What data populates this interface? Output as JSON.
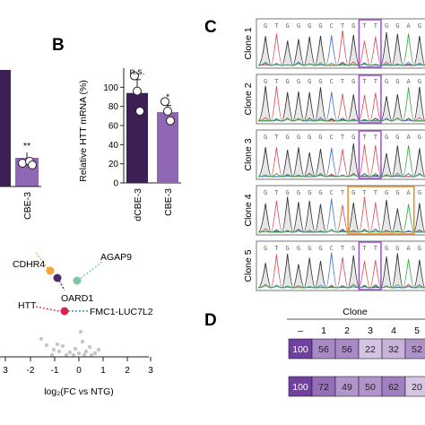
{
  "panel_labels": {
    "b": "B",
    "c": "C",
    "d": "D"
  },
  "panel_a_fragment": {
    "bar_label": "CBE-3",
    "significance": "**",
    "colors": {
      "dark": "#3b1f55",
      "light": "#8f67b5"
    }
  },
  "panel_b": {
    "chart_data": {
      "type": "bar",
      "categories": [
        "dCBE-3",
        "CBE-3"
      ],
      "values": [
        94,
        74
      ],
      "errors": [
        14,
        7
      ],
      "points": [
        [
          112,
          96,
          75
        ],
        [
          85,
          75,
          65
        ]
      ],
      "significance": [
        "n.s.",
        "*"
      ],
      "ylabel": "Relative HTT mRNA (%)",
      "yticks": [
        "0",
        "20",
        "40",
        "60",
        "80",
        "100"
      ],
      "ylim": [
        0,
        120
      ],
      "colors": [
        "#3b1f55",
        "#8f67b5"
      ]
    }
  },
  "panel_volcano": {
    "chart_data": {
      "type": "scatter",
      "xlabel": "log₂(FC vs NTG)",
      "xticks": [
        "3",
        "-2",
        "-1",
        "0",
        "1",
        "2",
        "3"
      ],
      "labeled_genes": [
        {
          "name": "CDHR4",
          "color": "#f4a340"
        },
        {
          "name": "AGAP9",
          "color": "#7ec8a4"
        },
        {
          "name": "OARD1",
          "color": "#4a2c63"
        },
        {
          "name": "HTT",
          "color": "#d7264a"
        },
        {
          "name": "FMC1-LUC7L2",
          "color": "#3a8ec0"
        }
      ]
    }
  },
  "panel_c": {
    "sequence": [
      "G",
      "T",
      "G",
      "G",
      "G",
      "G",
      "C",
      "T",
      "G",
      "T",
      "T",
      "G",
      "G",
      "A",
      "G"
    ],
    "clones": [
      {
        "label": "Clone 1",
        "box_color": "#9b4fd0"
      },
      {
        "label": "Clone 2",
        "box_color": "#9b4fd0"
      },
      {
        "label": "Clone 3",
        "box_color": "#9b4fd0"
      },
      {
        "label": "Clone 4",
        "box_color": "#f0891e"
      },
      {
        "label": "Clone 5",
        "box_color": "#9b4fd0"
      }
    ],
    "trace_colors": {
      "G": "#333333",
      "T": "#e0525a",
      "C": "#4a78c8",
      "A": "#3fa84e"
    }
  },
  "panel_d": {
    "header": "Clone",
    "columns": [
      "–",
      "1",
      "2",
      "3",
      "4",
      "5"
    ],
    "rows": [
      [
        "100",
        "56",
        "56",
        "22",
        "32",
        "52"
      ],
      [
        "100",
        "72",
        "49",
        "50",
        "62",
        "20"
      ]
    ]
  }
}
